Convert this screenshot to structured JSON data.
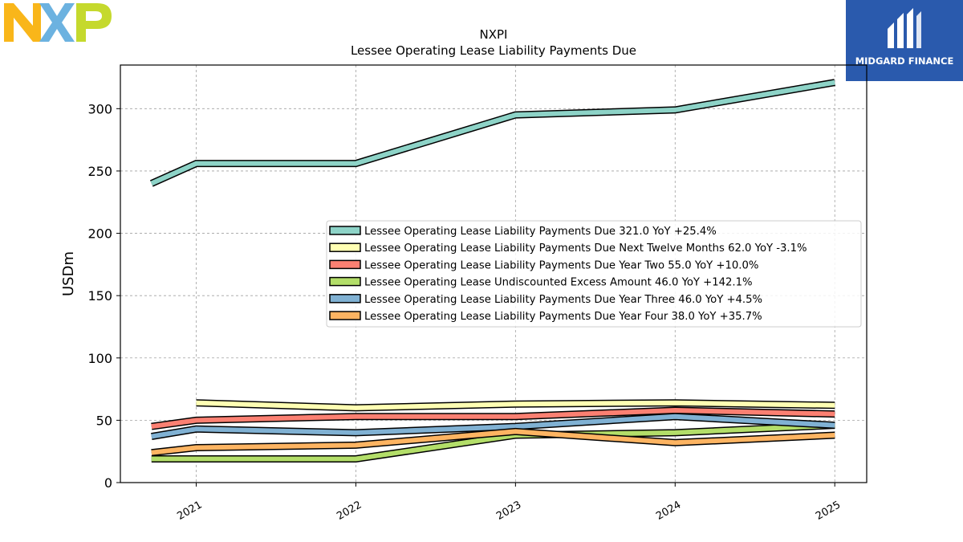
{
  "brand": {
    "left_logo_text": "NXP",
    "right_logo_text": "MIDGARD FINANCE"
  },
  "colors": {
    "total": "#8dd3c7",
    "next_twelve": "#ffffb3",
    "year_two": "#fb8072",
    "excess": "#b3de69",
    "year_three": "#80b1d3",
    "year_four": "#fdb462",
    "nxp_yellow": "#f9b61a",
    "nxp_blue": "#6cb2e0",
    "nxp_green": "#c5d92d",
    "midgard_blue": "#2a5aad"
  },
  "chart_data": {
    "type": "line",
    "title": "NXPI",
    "subtitle": "Lessee Operating Lease Liability Payments Due",
    "ylabel": "USDm",
    "xlabel": "",
    "ylim": [
      0,
      335
    ],
    "yticks": [
      0,
      50,
      100,
      150,
      200,
      250,
      300
    ],
    "xticks": [
      "2021",
      "2022",
      "2023",
      "2024",
      "2025"
    ],
    "grid": true,
    "legend_position": "center-right",
    "series": [
      {
        "name": "Lessee Operating Lease Liability Payments Due  321.0 YoY +25.4%",
        "color": "#8dd3c7",
        "x": [
          2020.72,
          2021,
          2022,
          2023,
          2024,
          2025
        ],
        "values": [
          240,
          256,
          256,
          295,
          299,
          321
        ]
      },
      {
        "name": "Lessee Operating Lease Liability Payments Due Next Twelve Months  62.0 YoY -3.1%",
        "color": "#ffffb3",
        "x": [
          2021,
          2022,
          2023,
          2024,
          2025
        ],
        "values": [
          64,
          60,
          63,
          64,
          62
        ]
      },
      {
        "name": "Lessee Operating Lease Liability Payments Due Year Two  55.0 YoY +10.0%",
        "color": "#fb8072",
        "x": [
          2020.72,
          2021,
          2022,
          2023,
          2024,
          2025
        ],
        "values": [
          45,
          50,
          53,
          53,
          58,
          55
        ]
      },
      {
        "name": "Lessee Operating Lease Undiscounted Excess Amount  46.0 YoY +142.1%",
        "color": "#b3de69",
        "x": [
          2020.72,
          2021,
          2022,
          2023,
          2024,
          2025
        ],
        "values": [
          19,
          19,
          19,
          38,
          40,
          46
        ]
      },
      {
        "name": "Lessee Operating Lease Liability Payments Due Year Three  46.0 YoY +4.5%",
        "color": "#80b1d3",
        "x": [
          2020.72,
          2021,
          2022,
          2023,
          2024,
          2025
        ],
        "values": [
          37,
          43,
          40,
          45,
          53,
          46
        ]
      },
      {
        "name": "Lessee Operating Lease Liability Payments Due Year Four  38.0 YoY +35.7%",
        "color": "#fdb462",
        "x": [
          2020.72,
          2021,
          2022,
          2023,
          2024,
          2025
        ],
        "values": [
          24,
          28,
          30,
          41,
          32,
          38
        ]
      }
    ]
  }
}
